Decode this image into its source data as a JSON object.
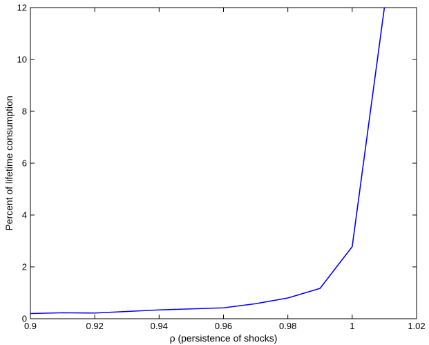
{
  "chart_data": {
    "type": "line",
    "title": "",
    "xlabel": "ρ (persistence of shocks)",
    "ylabel": "Percent of lifetime consumption",
    "xlim": [
      0.9,
      1.02
    ],
    "ylim": [
      0,
      12
    ],
    "xticks": [
      "0.9",
      "0.92",
      "0.94",
      "0.96",
      "0.98",
      "1",
      "1.02"
    ],
    "yticks": [
      "0",
      "2",
      "4",
      "6",
      "8",
      "10",
      "12"
    ],
    "grid": false,
    "series": [
      {
        "color": "#0000ff",
        "x": [
          0.9,
          0.91,
          0.92,
          0.93,
          0.94,
          0.95,
          0.96,
          0.97,
          0.98,
          0.99,
          1.0,
          1.01
        ],
        "y": [
          0.2,
          0.23,
          0.22,
          0.28,
          0.34,
          0.38,
          0.42,
          0.58,
          0.8,
          1.17,
          2.78,
          12.0
        ]
      }
    ]
  }
}
